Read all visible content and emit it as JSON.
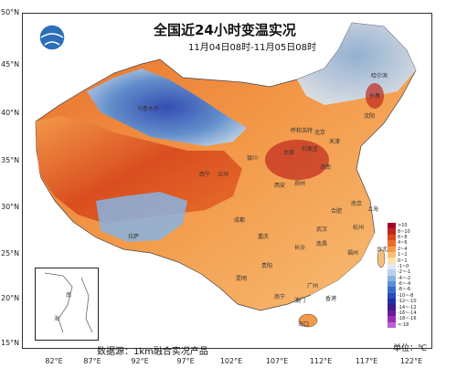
{
  "title": "全国近24小时变温实况",
  "subtitle": "11月04日08时-11月05日08时",
  "source": "数据源：1km融合实况产品",
  "unit": "单位：℃",
  "latitudes": [
    "50°N",
    "45°N",
    "40°N",
    "35°N",
    "30°N",
    "25°N",
    "20°N",
    "15°N"
  ],
  "longitudes": [
    "82°E",
    "87°E",
    "92°E",
    "97°E",
    "102°E",
    "107°E",
    "112°E",
    "117°E",
    "122°E"
  ],
  "legend": {
    "labels": [
      ">10",
      "8~10",
      "6~8",
      "4~6",
      "2~4",
      "1~2",
      "0~1",
      "-1~0",
      "-2~-1",
      "-4~-2",
      "-6~-4",
      "-8~-6",
      "-10~-8",
      "-12~-10",
      "-14~-12",
      "-16~-14",
      "-18~-16",
      "<-18"
    ],
    "colors": [
      "#a50026",
      "#c0281e",
      "#d84a1e",
      "#e86d2a",
      "#f39a4a",
      "#f7c078",
      "#fbe2b0",
      "#dfe9f5",
      "#b7d2ee",
      "#88b3e0",
      "#5b8fd3",
      "#3a6cc6",
      "#2a4ab8",
      "#1f2ea0",
      "#3c1d8a",
      "#6a1b9a",
      "#9a2fb0",
      "#c060d0"
    ]
  },
  "cities": [
    "乌鲁木齐",
    "哈尔滨",
    "长春",
    "沈阳",
    "北京",
    "天津",
    "石家庄",
    "太原",
    "济南",
    "呼和浩特",
    "银川",
    "兰州",
    "西宁",
    "郑州",
    "西安",
    "南京",
    "合肥",
    "上海",
    "杭州",
    "武汉",
    "成都",
    "重庆",
    "长沙",
    "南昌",
    "福州",
    "台北",
    "贵阳",
    "昆明",
    "南宁",
    "广州",
    "香港",
    "澳门",
    "海口",
    "拉萨"
  ],
  "inset_labels": [
    "南",
    "海"
  ]
}
